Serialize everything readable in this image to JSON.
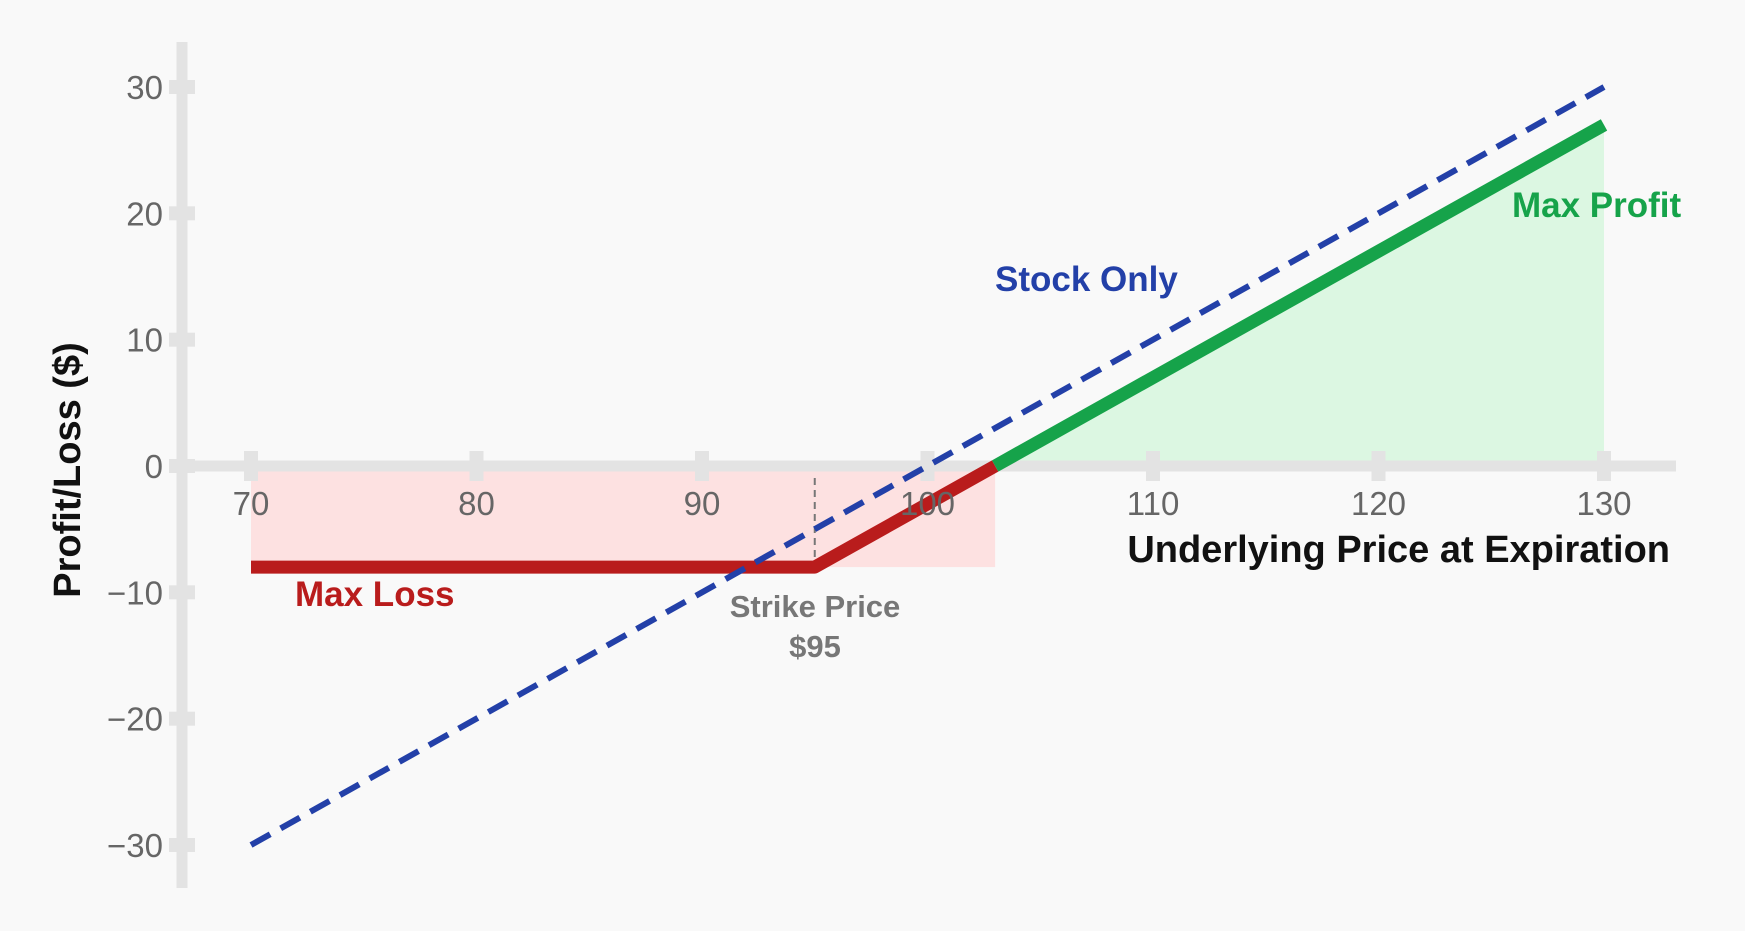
{
  "chart_data": {
    "type": "line",
    "xlabel": "Underlying Price at Expiration",
    "ylabel": "Profit/Loss ($)",
    "xlim": [
      70,
      130
    ],
    "ylim": [
      -30,
      30
    ],
    "x_ticks": [
      70,
      80,
      90,
      100,
      110,
      120,
      130
    ],
    "y_ticks": [
      30,
      20,
      10,
      0,
      -10,
      -20,
      -30
    ],
    "x_tick_labels": [
      "70",
      "80",
      "90",
      "100",
      "110",
      "120",
      "130"
    ],
    "y_tick_labels": [
      "30",
      "20",
      "10",
      "0",
      "−10",
      "−20",
      "−30"
    ],
    "strike": 95,
    "series": [
      {
        "name": "Stock Only",
        "style": "dashed",
        "color": "#2340a8",
        "x": [
          70,
          130
        ],
        "y": [
          -30,
          30
        ]
      },
      {
        "name": "",
        "style": "solid",
        "loss_color": "#b91c1c",
        "profit_color": "#16a34a",
        "x": [
          70,
          95,
          103,
          130
        ],
        "y": [
          -8,
          -8,
          0,
          27
        ]
      }
    ],
    "regions": [
      {
        "kind": "loss",
        "x_from": 70,
        "x_to": 103,
        "color": "#fde1e1"
      },
      {
        "kind": "profit",
        "x_from": 103,
        "x_to": 130,
        "color": "#dcf7e2"
      }
    ],
    "annotations": {
      "max_loss": "Max Loss",
      "max_profit": "Max Profit",
      "stock_only": "Stock Only",
      "strike_line1": "Strike Price",
      "strike_line2": "$95"
    },
    "colors": {
      "axis": "#e3e3e3",
      "stock": "#2340a8",
      "loss": "#b91c1c",
      "profit": "#16a34a",
      "strike": "#777777"
    }
  }
}
